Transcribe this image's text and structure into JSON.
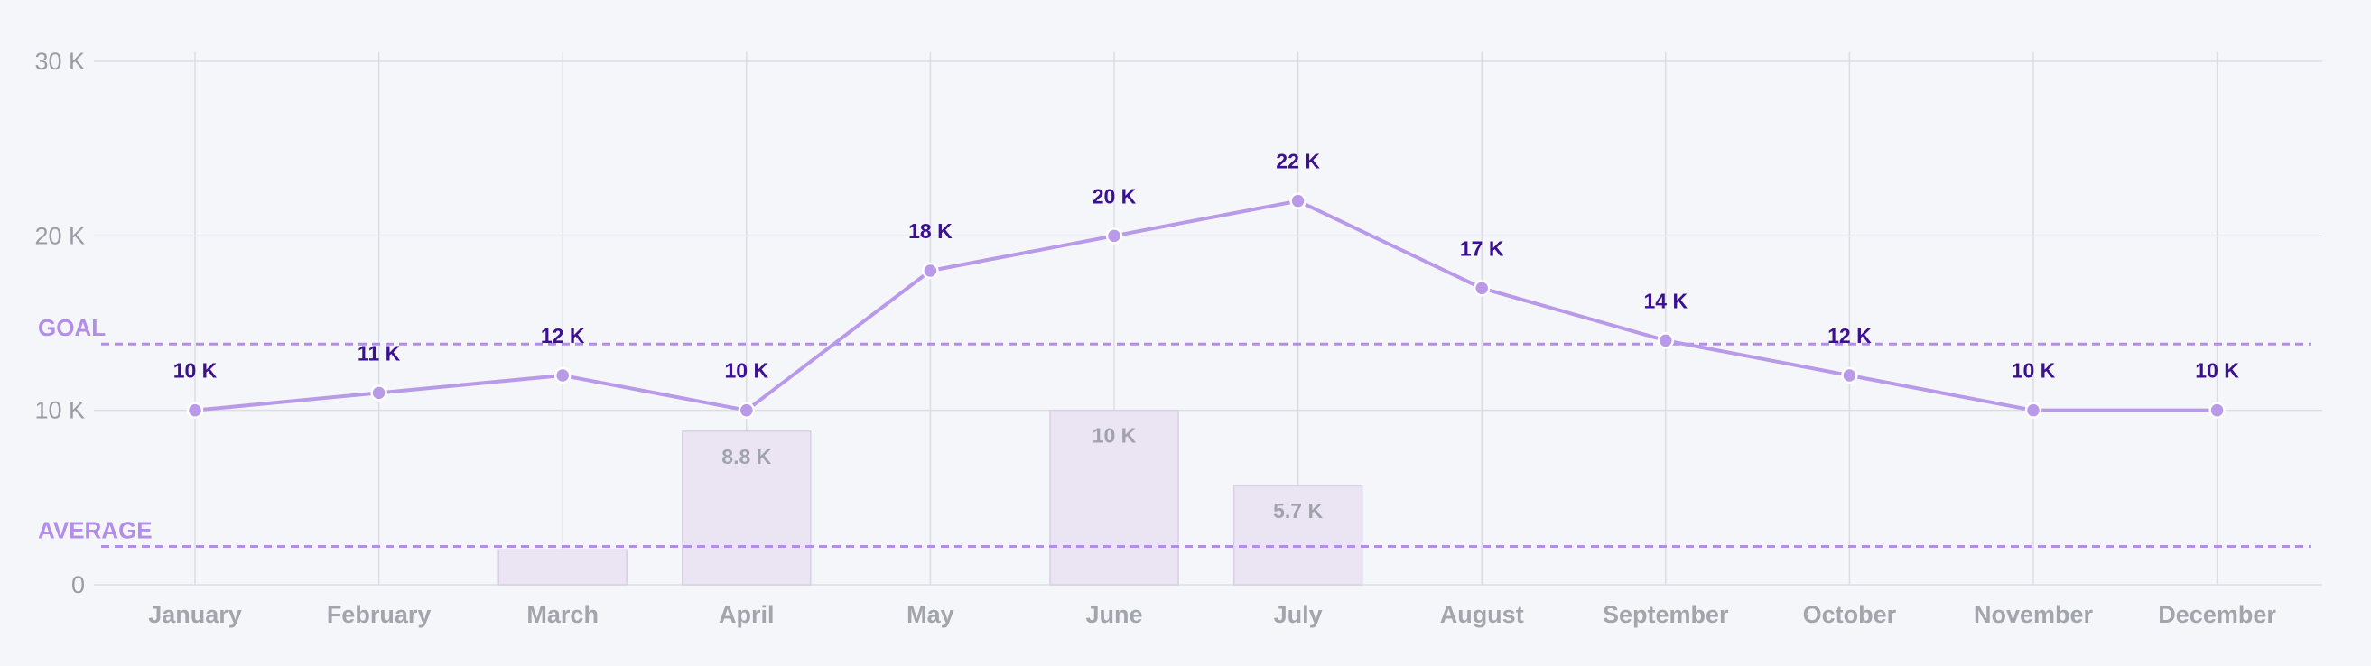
{
  "chart_data": {
    "type": "line",
    "title": "",
    "xlabel": "",
    "ylabel": "",
    "ylim": [
      0,
      30000
    ],
    "y_ticks": [
      {
        "value": 0,
        "label": "0"
      },
      {
        "value": 10000,
        "label": "10 K"
      },
      {
        "value": 20000,
        "label": "20 K"
      },
      {
        "value": 30000,
        "label": "30 K"
      }
    ],
    "categories": [
      "January",
      "February",
      "March",
      "April",
      "May",
      "June",
      "July",
      "August",
      "September",
      "October",
      "November",
      "December"
    ],
    "series": [
      {
        "name": "Line",
        "type": "line",
        "values": [
          10000,
          11000,
          12000,
          10000,
          18000,
          20000,
          22000,
          17000,
          14000,
          12000,
          10000,
          10000
        ],
        "labels": [
          "10 K",
          "11 K",
          "12 K",
          "10 K",
          "18 K",
          "20 K",
          "22 K",
          "17 K",
          "14 K",
          "12 K",
          "10 K",
          "10 K"
        ]
      },
      {
        "name": "Bars",
        "type": "bar",
        "values": [
          null,
          null,
          2000,
          8800,
          null,
          10000,
          5700,
          null,
          null,
          null,
          null,
          null
        ],
        "labels": [
          null,
          null,
          "",
          "8.8 K",
          null,
          "10 K",
          "5.7 K",
          null,
          null,
          null,
          null,
          null
        ]
      }
    ],
    "reference_lines": [
      {
        "name": "GOAL",
        "value": 13800
      },
      {
        "name": "AVERAGE",
        "value": 2200
      }
    ],
    "grid": true
  },
  "colors": {
    "line": "#b89ae9",
    "point_fill": "#b89ae9",
    "point_stroke": "#ffffff",
    "bar_fill": "#ebe4f3",
    "bar_stroke": "#d8d0e4",
    "grid": "#dcdde3",
    "refline": "#b28ee8"
  }
}
